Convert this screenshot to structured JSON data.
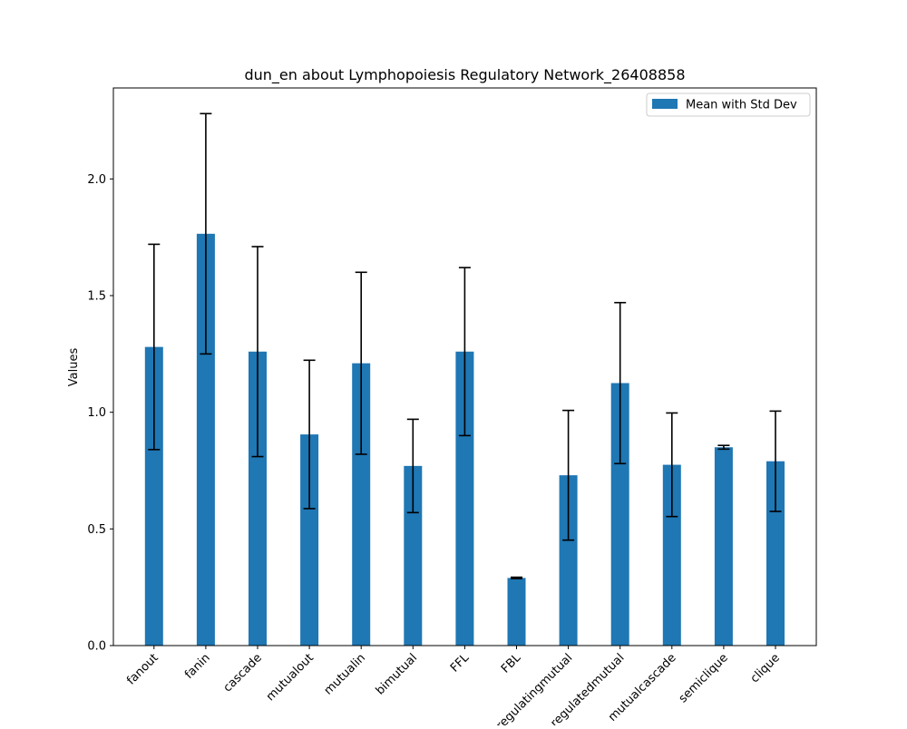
{
  "chart_data": {
    "type": "bar",
    "title": "dun_en about Lymphopoiesis Regulatory Network_26408858",
    "xlabel": "",
    "ylabel": "Values",
    "categories": [
      "fanout",
      "fanin",
      "cascade",
      "mutualout",
      "mutualin",
      "bimutual",
      "FFL",
      "FBL",
      "regulatingmutual",
      "regulatedmutual",
      "mutualcascade",
      "semiclique",
      "clique"
    ],
    "series": [
      {
        "name": "Mean with Std Dev",
        "values": [
          1.28,
          1.765,
          1.26,
          0.905,
          1.21,
          0.77,
          1.26,
          0.29,
          0.73,
          1.125,
          0.775,
          0.85,
          0.79
        ],
        "error": [
          0.44,
          0.515,
          0.45,
          0.318,
          0.39,
          0.2,
          0.36,
          0.003,
          0.278,
          0.345,
          0.222,
          0.008,
          0.215
        ]
      }
    ],
    "ylim": [
      0,
      2.39
    ],
    "yticks": [
      0.0,
      0.5,
      1.0,
      1.5,
      2.0
    ],
    "ytick_labels": [
      "0.0",
      "0.5",
      "1.0",
      "1.5",
      "2.0"
    ],
    "legend_position": "top-right",
    "grid": false,
    "colors": {
      "bar": "#1f77b4",
      "error_bar": "#000000",
      "axes": "#000000",
      "legend_border": "#cccccc"
    }
  }
}
